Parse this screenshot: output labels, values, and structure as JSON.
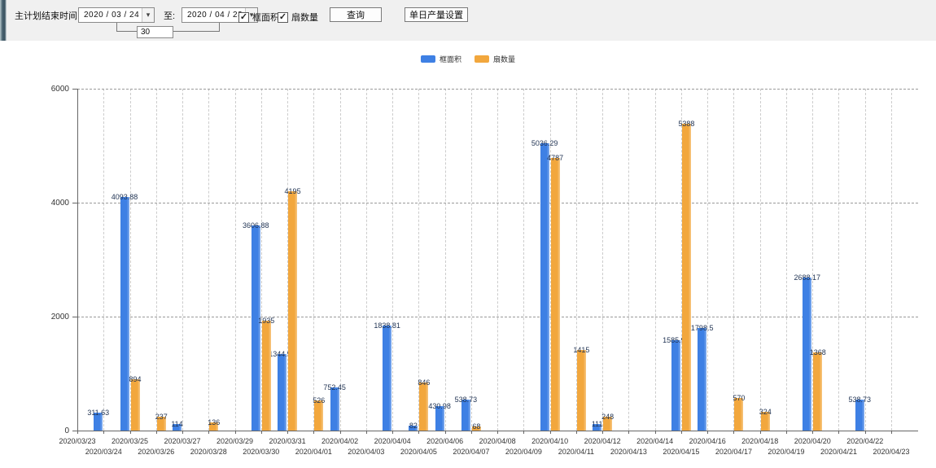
{
  "toolbar": {
    "main_label": "主计划结束时间:",
    "date_from": "2020 / 03 / 24",
    "to_label": "至:",
    "date_to": "2020 / 04 / 23",
    "interval_days": "30",
    "checkboxes": [
      {
        "label": "框面积",
        "checked": true
      },
      {
        "label": "扇数量",
        "checked": true
      }
    ],
    "query_button": "查询",
    "daily_output_button": "单日产量设置"
  },
  "icons": {
    "dropdown_arrow": "▾",
    "checkmark": "✓"
  },
  "chart_data": {
    "type": "bar",
    "title": "",
    "xlabel": "",
    "ylabel": "",
    "ylim": [
      0,
      6000
    ],
    "yticks": [
      0,
      2000,
      4000,
      6000
    ],
    "grid": true,
    "legend_position": "top",
    "value_label_color": "#1F3252",
    "categories": [
      "2020/03/23",
      "2020/03/24",
      "2020/03/25",
      "2020/03/26",
      "2020/03/27",
      "2020/03/28",
      "2020/03/29",
      "2020/03/30",
      "2020/03/31",
      "2020/04/01",
      "2020/04/02",
      "2020/04/03",
      "2020/04/04",
      "2020/04/05",
      "2020/04/06",
      "2020/04/07",
      "2020/04/08",
      "2020/04/09",
      "2020/04/10",
      "2020/04/11",
      "2020/04/12",
      "2020/04/13",
      "2020/04/14",
      "2020/04/15",
      "2020/04/16",
      "2020/04/17",
      "2020/04/18",
      "2020/04/19",
      "2020/04/20",
      "2020/04/21",
      "2020/04/22",
      "2020/04/23"
    ],
    "series": [
      {
        "name": "框面积",
        "color": "#3E80E4",
        "values": [
          null,
          311.63,
          4093.88,
          null,
          114,
          null,
          null,
          3606.88,
          1344.95,
          null,
          752.45,
          null,
          1838.81,
          82,
          430.98,
          538.73,
          null,
          null,
          5036.29,
          null,
          111,
          null,
          null,
          1585.96,
          1798.5,
          null,
          null,
          null,
          2688.17,
          null,
          538.73,
          null
        ]
      },
      {
        "name": "扇数量",
        "color": "#F2A73D",
        "values": [
          null,
          null,
          894,
          237,
          null,
          136,
          null,
          1935,
          4195,
          526,
          null,
          null,
          null,
          846,
          null,
          68,
          null,
          null,
          4787,
          1415,
          248,
          null,
          null,
          5388,
          null,
          570,
          324,
          null,
          1368,
          null,
          null,
          null
        ]
      }
    ]
  }
}
